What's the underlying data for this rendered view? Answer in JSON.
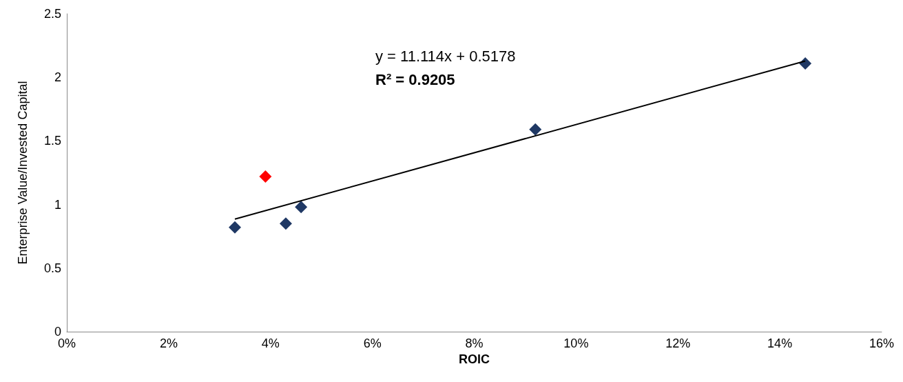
{
  "chart_data": {
    "type": "scatter",
    "xlabel": "ROIC",
    "ylabel": "Enterprise Value/Invested Capital",
    "annotations": [
      "y = 11.114x + 0.5178",
      "R² = 0.9205"
    ],
    "series": [
      {
        "color": "#1f3864",
        "x": [
          3.3,
          4.3,
          4.6,
          9.2,
          14.5
        ],
        "values": [
          0.82,
          0.85,
          0.98,
          1.59,
          2.11
        ]
      },
      {
        "color": "#ff0000",
        "x": [
          3.9
        ],
        "values": [
          1.22
        ]
      },
      {
        "type": "line",
        "marker": "none",
        "color": "#000000",
        "x": [
          3.3,
          14.5
        ],
        "values": [
          0.885,
          2.129
        ]
      }
    ],
    "xlim": [
      0,
      16
    ],
    "xticks": [
      {
        "value": 0,
        "label": "0%"
      },
      {
        "value": 2,
        "label": "2%"
      },
      {
        "value": 4,
        "label": "4%"
      },
      {
        "value": 6,
        "label": "6%"
      },
      {
        "value": 8,
        "label": "8%"
      },
      {
        "value": 10,
        "label": "10%"
      },
      {
        "value": 12,
        "label": "12%"
      },
      {
        "value": 14,
        "label": "14%"
      },
      {
        "value": 16,
        "label": "16%"
      }
    ],
    "ylim": [
      0,
      2.5
    ],
    "yticks": [
      0,
      0.5,
      1,
      1.5,
      2,
      2.5
    ],
    "grid": false,
    "marker": "diamond"
  }
}
